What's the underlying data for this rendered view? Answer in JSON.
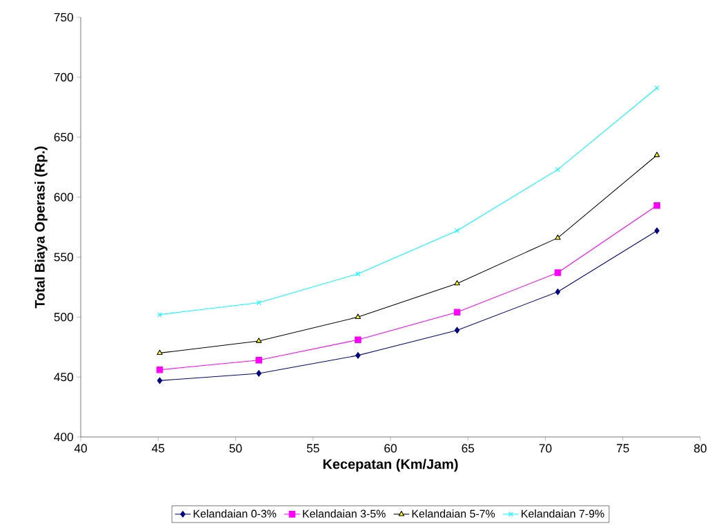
{
  "chart_data": {
    "type": "line",
    "xlabel": "Kecepatan (Km/Jam)",
    "ylabel": "Total Biaya Operasi (Rp.)",
    "x": [
      45.1,
      51.5,
      57.9,
      64.3,
      70.8,
      77.2
    ],
    "series": [
      {
        "name": "Kelandaian 0-3%",
        "color": "#000080",
        "marker": "diamond",
        "values": [
          447,
          453,
          468,
          489,
          521,
          572
        ]
      },
      {
        "name": "Kelandaian 3-5%",
        "color": "#ff00ff",
        "marker": "square",
        "values": [
          456,
          464,
          481,
          504,
          537,
          593
        ]
      },
      {
        "name": "Kelandaian 5-7%",
        "color": "#ffff00",
        "marker": "triangle",
        "values": [
          470,
          480,
          500,
          528,
          566,
          635
        ]
      },
      {
        "name": "Kelandaian 7-9%",
        "color": "#00ffff",
        "marker": "cross",
        "values": [
          502,
          512,
          536,
          572,
          623,
          691
        ]
      }
    ],
    "xlim": [
      40,
      80
    ],
    "xticks": [
      40,
      45,
      50,
      55,
      60,
      65,
      70,
      75,
      80
    ],
    "ylim": [
      400,
      750
    ],
    "yticks": [
      400,
      450,
      500,
      550,
      600,
      650,
      700,
      750
    ],
    "grid": false,
    "legend": "bottom",
    "line_style": "solid"
  }
}
